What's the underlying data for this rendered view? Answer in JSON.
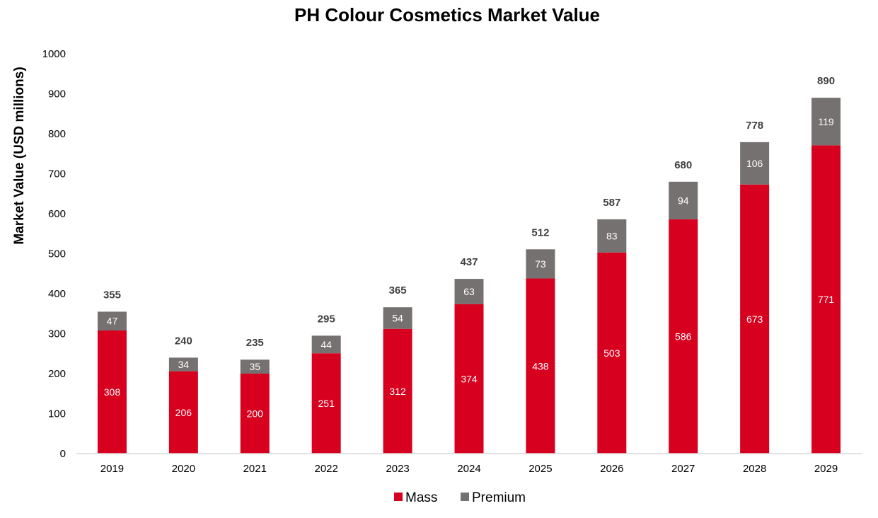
{
  "chart_data": {
    "type": "bar",
    "stacked": true,
    "title": "PH Colour Cosmetics Market Value",
    "xlabel": "",
    "ylabel": "Market Value (USD millions)",
    "ylim": [
      0,
      1000
    ],
    "yticks": [
      0,
      100,
      200,
      300,
      400,
      500,
      600,
      700,
      800,
      900,
      1000
    ],
    "categories": [
      "2019",
      "2020",
      "2021",
      "2022",
      "2023",
      "2024",
      "2025",
      "2026",
      "2027",
      "2028",
      "2029"
    ],
    "series": [
      {
        "name": "Mass",
        "color": "#D7001E",
        "values": [
          308,
          206,
          200,
          251,
          312,
          374,
          438,
          503,
          586,
          673,
          771
        ]
      },
      {
        "name": "Premium",
        "color": "#767171",
        "values": [
          47,
          34,
          35,
          44,
          54,
          63,
          73,
          83,
          94,
          106,
          119
        ]
      }
    ],
    "totals": [
      355,
      240,
      235,
      295,
      365,
      437,
      512,
      587,
      680,
      778,
      890
    ],
    "grid": false,
    "legend_position": "bottom"
  }
}
